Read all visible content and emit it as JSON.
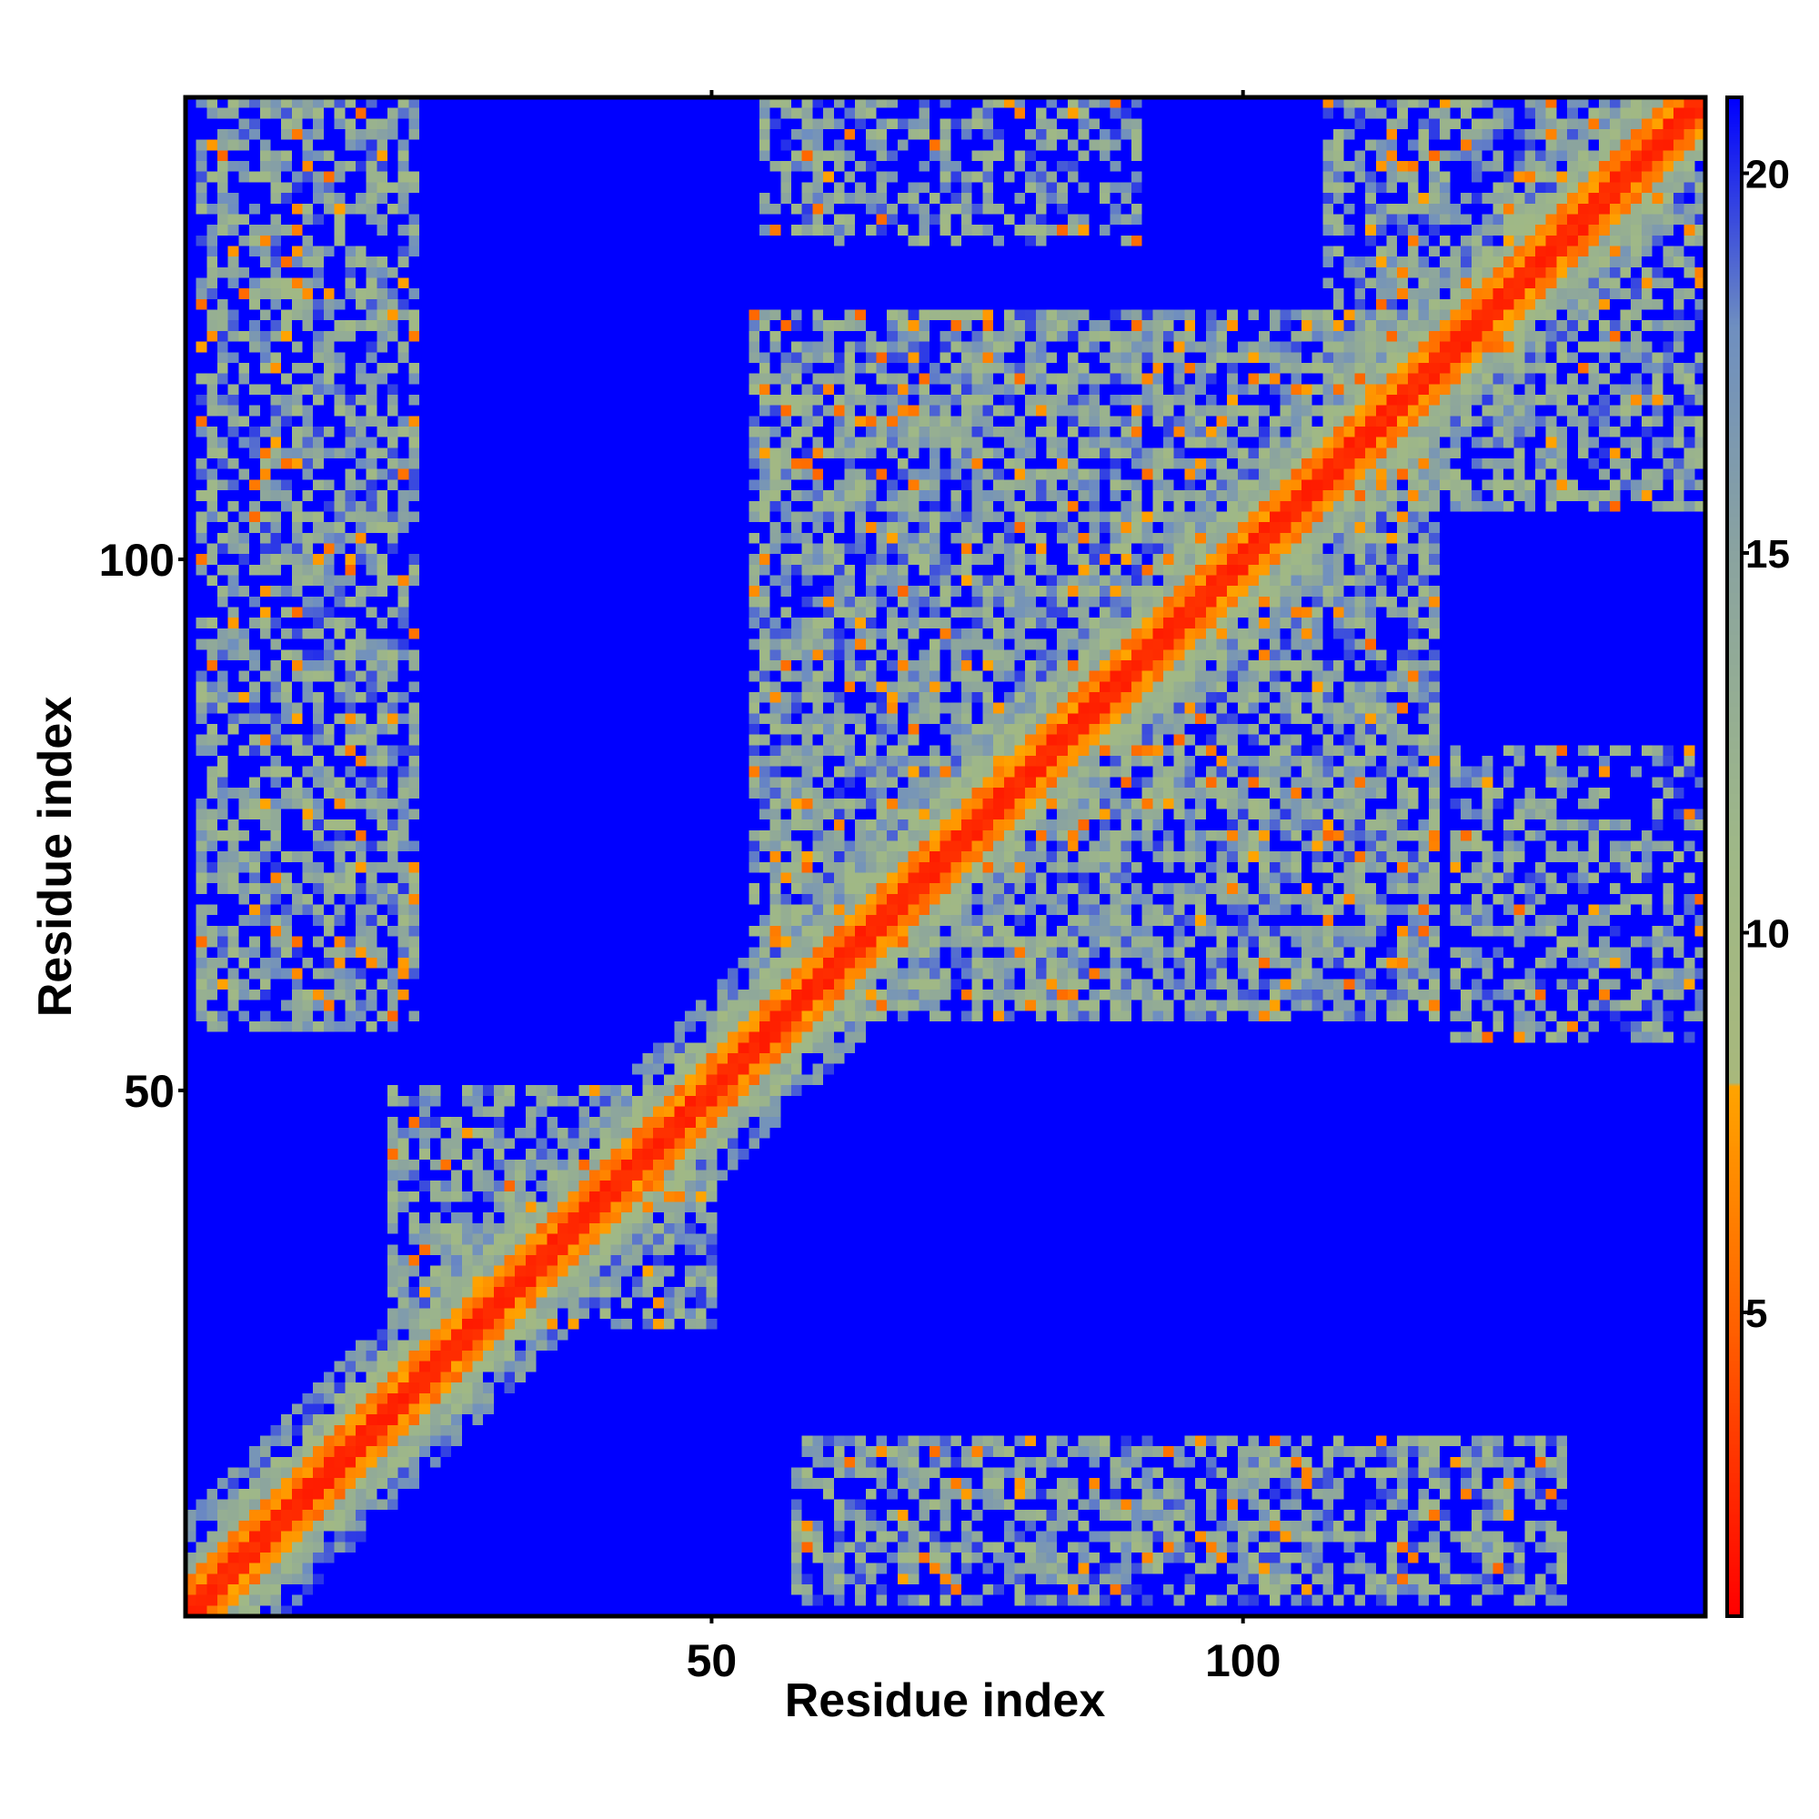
{
  "chart_data": {
    "type": "heatmap",
    "title": "",
    "xlabel": "Residue index",
    "ylabel": "Residue index",
    "n_residues": 143,
    "xlim": [
      1,
      143
    ],
    "ylim": [
      1,
      143
    ],
    "x_ticks": [
      50,
      100
    ],
    "y_ticks": [
      50,
      100
    ],
    "value_range": [
      1,
      21
    ],
    "colorbar": {
      "ticks": [
        5,
        10,
        15,
        20
      ],
      "stops": [
        {
          "value": 1,
          "color": "#ff0000"
        },
        {
          "value": 5,
          "color": "#ff6600"
        },
        {
          "value": 8,
          "color": "#ffa500"
        },
        {
          "value": 8.01,
          "color": "#a8b87c"
        },
        {
          "value": 11,
          "color": "#9fb887"
        },
        {
          "value": 15,
          "color": "#8aa3a0"
        },
        {
          "value": 18,
          "color": "#6f8fc0"
        },
        {
          "value": 21,
          "color": "#0000ff"
        }
      ]
    },
    "palette": {
      "contact_close": "#ff0000",
      "contact_mid": "#ff8c00",
      "near": "#a8bc84",
      "far": "#7f9ab0",
      "background": "#0000ff"
    },
    "contact_regions": [
      {
        "x": [
          58,
          130
        ],
        "y": [
          2,
          17
        ],
        "strength": "medium"
      },
      {
        "x": [
          2,
          22
        ],
        "y": [
          56,
          143
        ],
        "strength": "medium"
      },
      {
        "x": [
          54,
          118
        ],
        "y": [
          57,
          123
        ],
        "strength": "strong"
      },
      {
        "x": [
          120,
          143
        ],
        "y": [
          55,
          82
        ],
        "strength": "weak"
      },
      {
        "x": [
          108,
          143
        ],
        "y": [
          105,
          143
        ],
        "strength": "medium"
      },
      {
        "x": [
          55,
          90
        ],
        "y": [
          130,
          143
        ],
        "strength": "weak"
      },
      {
        "x": [
          20,
          50
        ],
        "y": [
          28,
          50
        ],
        "strength": "medium"
      }
    ]
  }
}
